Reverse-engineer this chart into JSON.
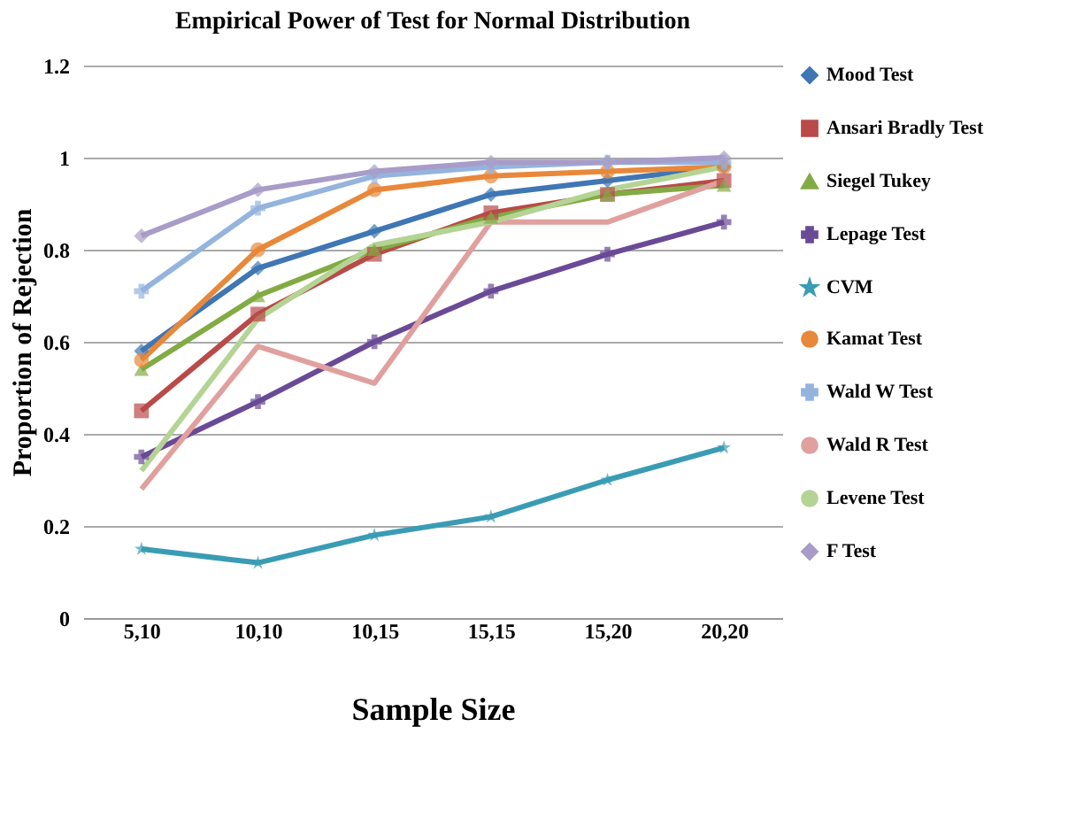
{
  "chart_data": {
    "type": "line",
    "title": "Empirical Power of Test for Normal Distribution",
    "xlabel": "Sample Size",
    "ylabel": "Proportion of Rejection",
    "categories": [
      "5,10",
      "10,10",
      "10,15",
      "15,15",
      "15,20",
      "20,20"
    ],
    "ylim": [
      0,
      1.2
    ],
    "yticks": [
      0,
      {
        "value": 0.2,
        "label": "0.2"
      },
      {
        "value": 0.4,
        "label": "0.4"
      },
      {
        "value": 0.6,
        "label": "0.6"
      },
      {
        "value": 0.8,
        "label": "0.8"
      },
      1,
      {
        "value": 1.2,
        "label": "1.2"
      }
    ],
    "grid": "y",
    "legend": "right",
    "line_style": "solid",
    "series": [
      {
        "name": "Mood Test",
        "color": "#3f76b4",
        "marker": "diamond",
        "values": [
          0.58,
          0.76,
          0.84,
          0.92,
          0.95,
          0.98
        ]
      },
      {
        "name": "Ansari Bradly Test",
        "color": "#b94a48",
        "marker": "square",
        "values": [
          0.45,
          0.66,
          0.79,
          0.88,
          0.92,
          0.95
        ]
      },
      {
        "name": "Siegel Tukey",
        "color": "#82ab44",
        "marker": "triangle",
        "values": [
          0.54,
          0.7,
          0.8,
          0.87,
          0.92,
          0.94
        ]
      },
      {
        "name": "Lepage Test",
        "color": "#6a4a96",
        "marker": "cross",
        "values": [
          0.35,
          0.47,
          0.6,
          0.71,
          0.79,
          0.86
        ]
      },
      {
        "name": "CVM",
        "color": "#3a9cb4",
        "marker": "star",
        "values": [
          0.15,
          0.12,
          0.18,
          0.22,
          0.3,
          0.37
        ]
      },
      {
        "name": "Kamat Test",
        "color": "#e8883a",
        "marker": "circle",
        "values": [
          0.56,
          0.8,
          0.93,
          0.96,
          0.97,
          0.98
        ]
      },
      {
        "name": "Wald W Test",
        "color": "#94b4de",
        "marker": "cross",
        "values": [
          0.71,
          0.89,
          0.96,
          0.98,
          0.99,
          0.99
        ]
      },
      {
        "name": "Wald R Test",
        "color": "#e0a09e",
        "marker": "none",
        "values": [
          0.28,
          0.59,
          0.51,
          0.86,
          0.86,
          0.95
        ]
      },
      {
        "name": "Levene Test",
        "color": "#b4d494",
        "marker": "none",
        "values": [
          0.32,
          0.65,
          0.81,
          0.86,
          0.93,
          0.98
        ]
      },
      {
        "name": "F Test",
        "color": "#a89cc8",
        "marker": "diamond",
        "values": [
          0.83,
          0.93,
          0.97,
          0.99,
          0.99,
          1.0
        ]
      }
    ]
  }
}
